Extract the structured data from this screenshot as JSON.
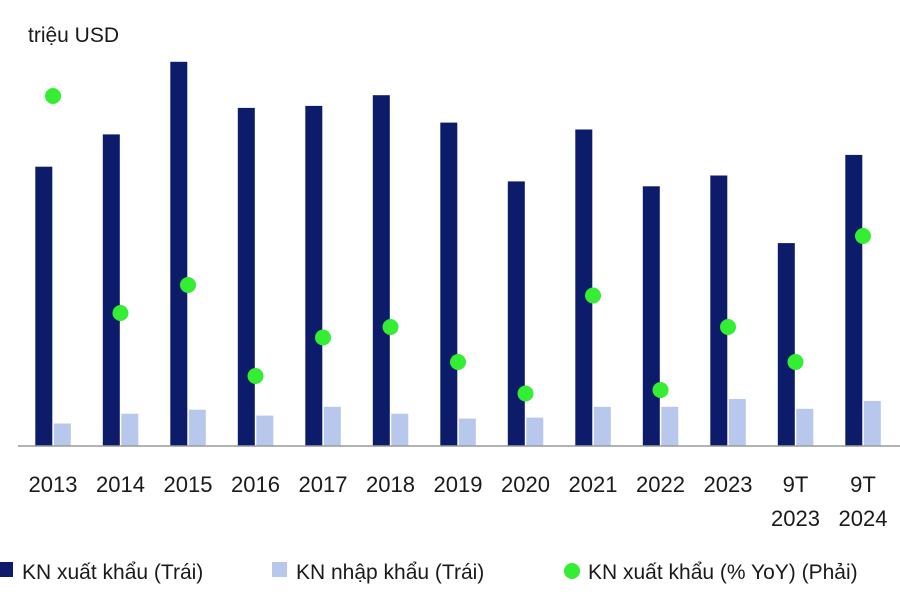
{
  "chart_data": {
    "type": "bar",
    "y_unit_label": "triệu USD",
    "categories": [
      [
        "2013"
      ],
      [
        "2014"
      ],
      [
        "2015"
      ],
      [
        "2016"
      ],
      [
        "2017"
      ],
      [
        "2018"
      ],
      [
        "2019"
      ],
      [
        "2020"
      ],
      [
        "2021"
      ],
      [
        "2022"
      ],
      [
        "2023"
      ],
      [
        "9T",
        "2023"
      ],
      [
        "9T",
        "2024"
      ]
    ],
    "series": [
      {
        "name": "KN xuất khẩu (Trái)",
        "kind": "bar",
        "axis": "left",
        "color": "#0d1b6b",
        "values": [
          285,
          318,
          392,
          345,
          347,
          358,
          330,
          270,
          323,
          265,
          276,
          207,
          297
        ]
      },
      {
        "name": "KN nhập khẩu (Trái)",
        "kind": "bar",
        "axis": "left",
        "color": "#b8c8ec",
        "values": [
          23,
          33,
          37,
          31,
          40,
          33,
          28,
          29,
          40,
          40,
          48,
          38,
          46
        ]
      },
      {
        "name": "KN xuất khẩu (% YoY) (Phải)",
        "kind": "scatter",
        "axis": "right",
        "color": "#33ee33",
        "values": [
          100,
          38,
          46,
          20,
          31,
          34,
          24,
          15,
          43,
          16,
          34,
          24,
          60
        ]
      }
    ],
    "left_axis_range": [
      0,
      400
    ],
    "right_axis_range": [
      0,
      112
    ],
    "grid": false,
    "legend_position": "bottom"
  }
}
